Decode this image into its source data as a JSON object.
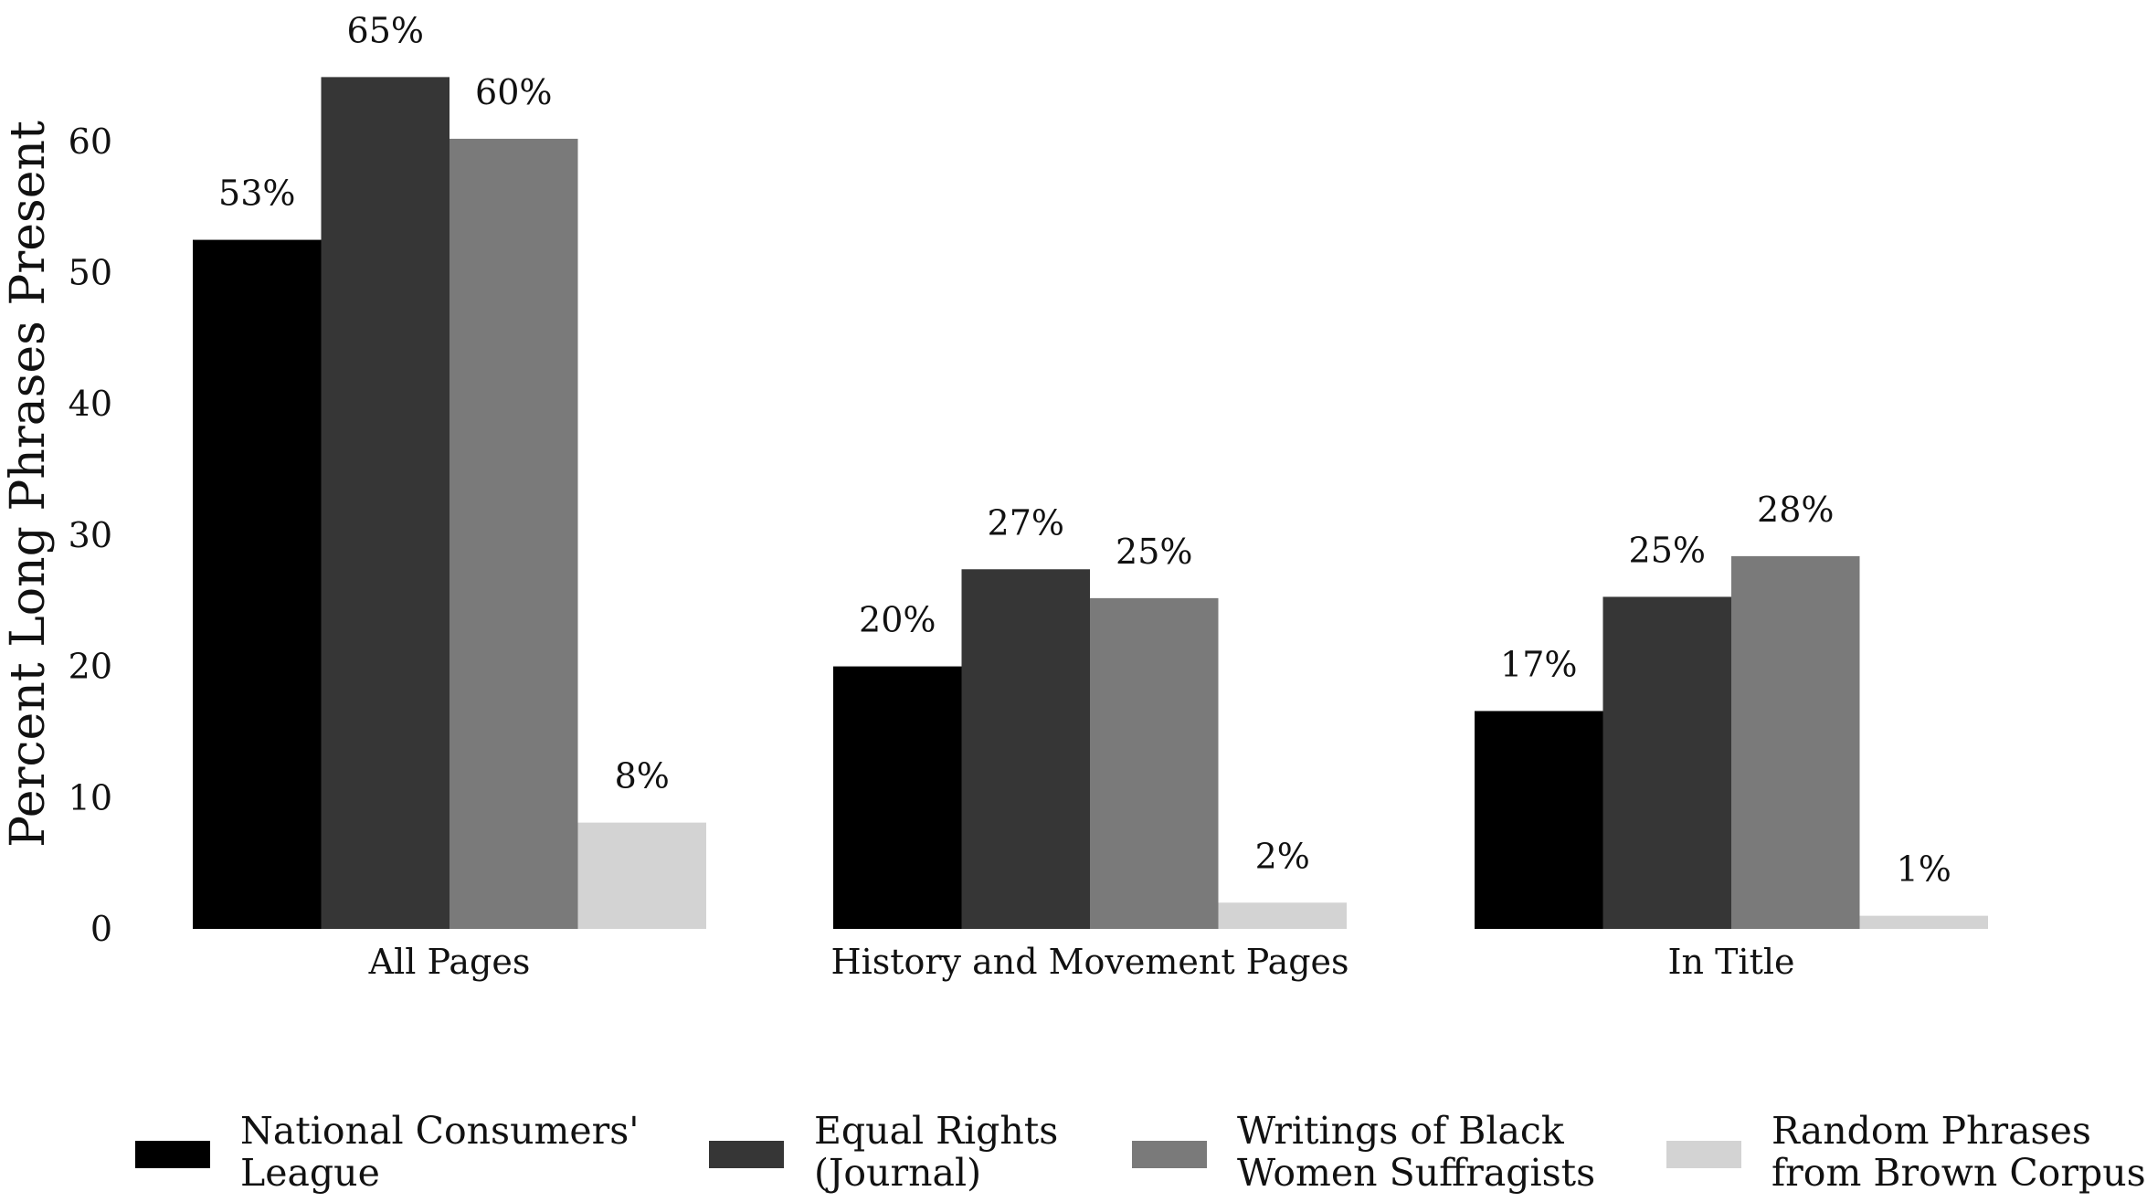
{
  "chart_data": {
    "type": "bar",
    "title": "",
    "xlabel": "",
    "ylabel": "Percent Long Phrases Present",
    "ylim": [
      0,
      70
    ],
    "yticks": [
      0,
      10,
      20,
      30,
      40,
      50,
      60
    ],
    "grid": false,
    "categories": [
      "All Pages",
      "History and Movement Pages",
      "In Title"
    ],
    "series": [
      {
        "name": "National Consumers' League",
        "legend_lines": [
          "National Consumers'",
          "League"
        ],
        "color": "#000000",
        "values": [
          52.5,
          20.0,
          16.6
        ],
        "labels": [
          "53%",
          "20%",
          "17%"
        ]
      },
      {
        "name": "Equal Rights (Journal)",
        "legend_lines": [
          "Equal Rights",
          "(Journal)"
        ],
        "color": "#363636",
        "values": [
          64.9,
          27.4,
          25.3
        ],
        "labels": [
          "65%",
          "27%",
          "25%"
        ]
      },
      {
        "name": "Writings of Black Women Suffragists",
        "legend_lines": [
          "Writings of Black",
          "Women Suffragists"
        ],
        "color": "#7a7a7a",
        "values": [
          60.2,
          25.2,
          28.4
        ],
        "labels": [
          "60%",
          "25%",
          "28%"
        ]
      },
      {
        "name": "Random Phrases from Brown Corpus",
        "legend_lines": [
          "Random Phrases",
          "from Brown Corpus"
        ],
        "color": "#d3d3d3",
        "values": [
          8.1,
          2.0,
          1.0
        ],
        "labels": [
          "8%",
          "2%",
          "1%"
        ]
      }
    ],
    "legend_position": "bottom"
  }
}
